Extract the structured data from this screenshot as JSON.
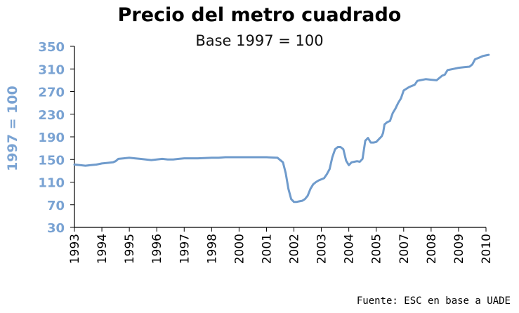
{
  "chart_data": {
    "type": "line",
    "title": "Precio del metro cuadrado",
    "subtitle": "Base 1997 = 100",
    "ylabel": "1997 = 100",
    "xlabel": "",
    "source": "Fuente: ESC en base a UADE",
    "ylim": [
      30,
      350
    ],
    "yticks": [
      30,
      70,
      110,
      150,
      190,
      230,
      270,
      310,
      350
    ],
    "xlim": [
      1993,
      2010.1
    ],
    "xticks": [
      "1993",
      "1994",
      "1995",
      "1996",
      "1997",
      "1998",
      "2000",
      "2001",
      "2002",
      "2003",
      "2004",
      "2005",
      "2007",
      "2008",
      "2009",
      "2010"
    ],
    "grid": false,
    "colors": {
      "line": "#6f9bcc",
      "axis_labels": "#7aa3d3",
      "ylabel": "#7aa3d3"
    },
    "series": [
      {
        "x": [
          1993.0,
          1993.2,
          1993.4,
          1993.6,
          1993.8,
          1994.0,
          1994.2,
          1994.4,
          1994.5,
          1994.6,
          1994.8,
          1995.0,
          1995.2,
          1995.4,
          1995.6,
          1995.8,
          1996.0,
          1996.2,
          1996.4,
          1996.6,
          1996.8,
          1997.0,
          1997.5,
          1998.0,
          1998.5,
          1999.0,
          1999.5,
          2000.0,
          2000.5,
          2001.0,
          2001.4,
          2001.6,
          2001.7,
          2001.8,
          2001.9,
          2002.0,
          2002.1,
          2002.2,
          2002.3,
          2002.4,
          2002.5,
          2002.6,
          2002.7,
          2002.8,
          2002.9,
          2003.0,
          2003.1,
          2003.2,
          2003.3,
          2003.4,
          2003.5,
          2003.6,
          2003.7,
          2003.8,
          2003.9,
          2004.0,
          2004.1,
          2004.2,
          2004.3,
          2004.4,
          2004.5,
          2004.6,
          2004.7,
          2004.8,
          2004.9,
          2005.0,
          2005.2,
          2005.4,
          2005.5,
          2005.6,
          2005.8,
          2006.0,
          2006.2,
          2006.4,
          2006.5,
          2006.6,
          2006.8,
          2007.0,
          2007.2,
          2007.4,
          2007.5,
          2007.6,
          2007.8,
          2008.0,
          2008.2,
          2008.4,
          2008.5,
          2008.6,
          2008.8,
          2009.0,
          2009.2,
          2009.4,
          2009.5,
          2009.6,
          2009.8,
          2009.9,
          2010.0,
          2010.1
        ],
        "y": [
          141,
          140,
          139,
          140,
          141,
          143,
          144,
          145,
          147,
          151,
          152,
          153,
          152,
          151,
          150,
          149,
          150,
          151,
          150,
          150,
          151,
          152,
          152,
          153,
          153,
          154,
          154,
          154,
          154,
          154,
          153,
          145,
          126,
          98,
          80,
          75,
          75,
          76,
          77,
          80,
          86,
          98,
          106,
          110,
          113,
          115,
          117,
          124,
          133,
          154,
          168,
          172,
          172,
          168,
          148,
          140,
          145,
          146,
          147,
          146,
          151,
          183,
          188,
          180,
          180,
          181,
          186,
          191,
          197,
          212,
          216,
          218,
          232,
          240,
          245,
          250,
          258,
          272,
          278,
          282,
          289,
          290,
          292,
          291,
          290,
          298,
          300,
          308,
          310,
          312,
          313,
          314,
          318,
          327,
          331,
          333,
          334,
          335
        ]
      }
    ]
  }
}
